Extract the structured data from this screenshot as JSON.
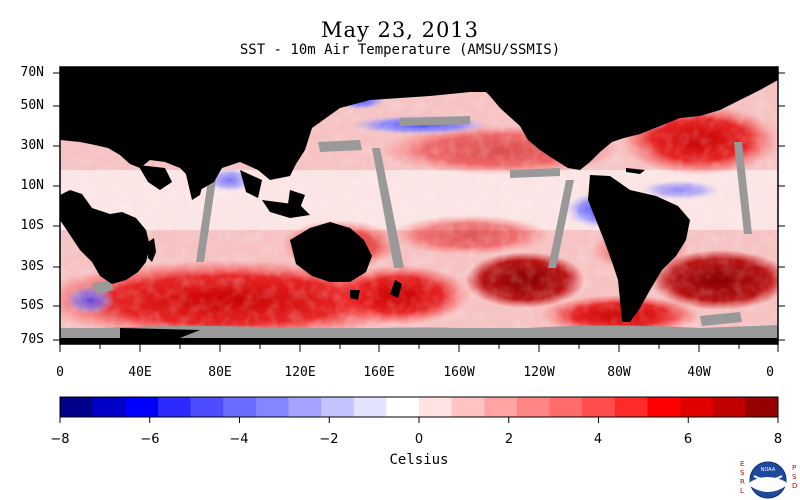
{
  "header": {
    "title": "May 23, 2013",
    "subtitle": "SST - 10m Air Temperature (AMSU/SSMIS)"
  },
  "map": {
    "lat_labels": [
      "70N",
      "50N",
      "30N",
      "10N",
      "10S",
      "30S",
      "50S",
      "70S"
    ],
    "lon_labels": [
      "0",
      "40E",
      "80E",
      "120E",
      "160E",
      "160W",
      "120W",
      "80W",
      "40W",
      "0"
    ],
    "colors": {
      "land": "#000000",
      "missing": "#999999",
      "border": "#000000"
    }
  },
  "colorbar": {
    "tick_labels": [
      "−8",
      "−6",
      "−4",
      "−2",
      "0",
      "2",
      "4",
      "6",
      "8"
    ],
    "label": "Celsius",
    "colors": [
      "#00008b",
      "#0000c8",
      "#0000ff",
      "#2b2bff",
      "#4d4dff",
      "#6b6bff",
      "#8585ff",
      "#a3a3ff",
      "#c3c3ff",
      "#e3e3ff",
      "#ffffff",
      "#ffe3e3",
      "#ffc3c3",
      "#ffa3a3",
      "#ff8585",
      "#ff6b6b",
      "#ff4d4d",
      "#ff2b2b",
      "#ff0000",
      "#e00000",
      "#c00000",
      "#960000"
    ]
  },
  "logo": {
    "left_text": "ESRL",
    "right_text": "PSD",
    "center_text": "NOAA"
  }
}
